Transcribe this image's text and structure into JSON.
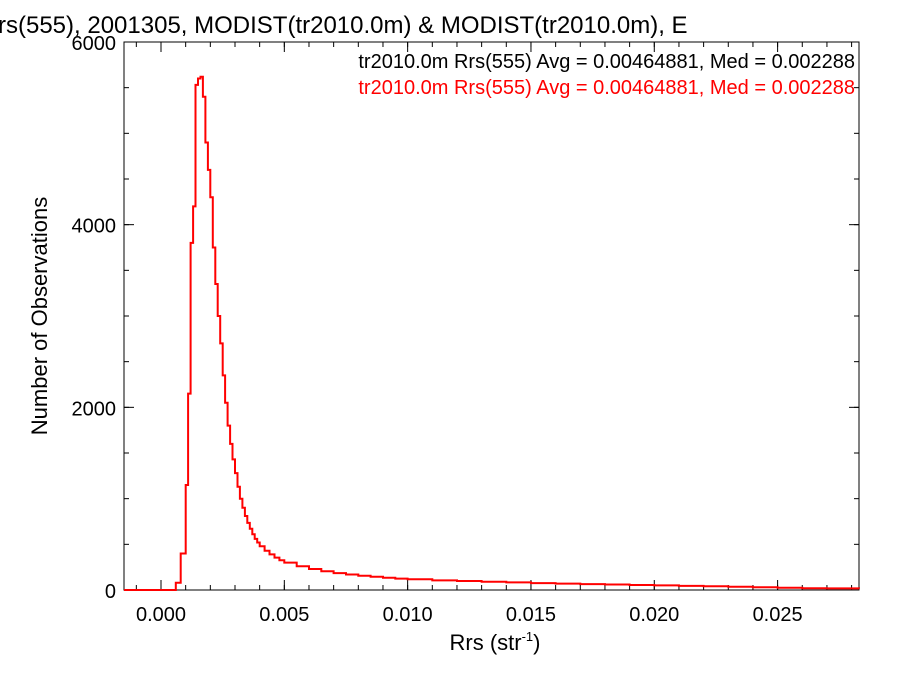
{
  "chart_data": {
    "type": "line",
    "title": "rs(555), 2001305, MODIST(tr2010.0m) & MODIST(tr2010.0m), E",
    "xlabel": "Rrs (str",
    "xlabel_sup": "-1",
    "xlabel_close": ")",
    "ylabel": "Number of Observations",
    "xlim": [
      -0.0015,
      0.0283
    ],
    "ylim": [
      0,
      6000
    ],
    "x_ticks": [
      0.0,
      0.005,
      0.01,
      0.015,
      0.02,
      0.025
    ],
    "x_tick_labels": [
      "0.000",
      "0.005",
      "0.010",
      "0.015",
      "0.020",
      "0.025"
    ],
    "y_ticks": [
      0,
      2000,
      4000,
      6000
    ],
    "y_tick_labels": [
      "0",
      "2000",
      "4000",
      "6000"
    ],
    "legend_placement": "top-right",
    "legend": [
      {
        "text": "tr2010.0m Rrs(555) Avg = 0.00464881, Med = 0.002288",
        "color": "#000000"
      },
      {
        "text": "tr2010.0m Rrs(555) Avg = 0.00464881, Med = 0.002288",
        "color": "#ff0000"
      }
    ],
    "series": [
      {
        "color": "#ff0000",
        "step": true,
        "points": [
          [
            -0.0015,
            0
          ],
          [
            0.0004,
            0
          ],
          [
            0.0006,
            80
          ],
          [
            0.0008,
            400
          ],
          [
            0.001,
            1150
          ],
          [
            0.0011,
            2150
          ],
          [
            0.0012,
            3800
          ],
          [
            0.0013,
            4200
          ],
          [
            0.0014,
            5530
          ],
          [
            0.0015,
            5600
          ],
          [
            0.0016,
            5620
          ],
          [
            0.0017,
            5400
          ],
          [
            0.0018,
            4900
          ],
          [
            0.0019,
            4600
          ],
          [
            0.002,
            4300
          ],
          [
            0.0021,
            3750
          ],
          [
            0.0022,
            3350
          ],
          [
            0.0023,
            3000
          ],
          [
            0.0024,
            2700
          ],
          [
            0.0025,
            2350
          ],
          [
            0.0026,
            2050
          ],
          [
            0.0027,
            1800
          ],
          [
            0.0028,
            1600
          ],
          [
            0.0029,
            1430
          ],
          [
            0.003,
            1280
          ],
          [
            0.0031,
            1130
          ],
          [
            0.0032,
            1000
          ],
          [
            0.0033,
            900
          ],
          [
            0.0034,
            810
          ],
          [
            0.0035,
            735
          ],
          [
            0.0036,
            670
          ],
          [
            0.0037,
            610
          ],
          [
            0.0038,
            560
          ],
          [
            0.0039,
            520
          ],
          [
            0.004,
            480
          ],
          [
            0.0042,
            430
          ],
          [
            0.0044,
            390
          ],
          [
            0.0046,
            355
          ],
          [
            0.0048,
            325
          ],
          [
            0.005,
            300
          ],
          [
            0.0055,
            260
          ],
          [
            0.006,
            230
          ],
          [
            0.0065,
            205
          ],
          [
            0.007,
            185
          ],
          [
            0.0075,
            170
          ],
          [
            0.008,
            155
          ],
          [
            0.0085,
            145
          ],
          [
            0.009,
            135
          ],
          [
            0.0095,
            125
          ],
          [
            0.01,
            118
          ],
          [
            0.011,
            105
          ],
          [
            0.012,
            98
          ],
          [
            0.013,
            90
          ],
          [
            0.014,
            83
          ],
          [
            0.015,
            75
          ],
          [
            0.016,
            70
          ],
          [
            0.017,
            65
          ],
          [
            0.018,
            60
          ],
          [
            0.019,
            55
          ],
          [
            0.02,
            50
          ],
          [
            0.021,
            45
          ],
          [
            0.022,
            40
          ],
          [
            0.023,
            35
          ],
          [
            0.024,
            30
          ],
          [
            0.025,
            25
          ],
          [
            0.026,
            20
          ],
          [
            0.027,
            18
          ],
          [
            0.0283,
            15
          ]
        ]
      }
    ]
  }
}
